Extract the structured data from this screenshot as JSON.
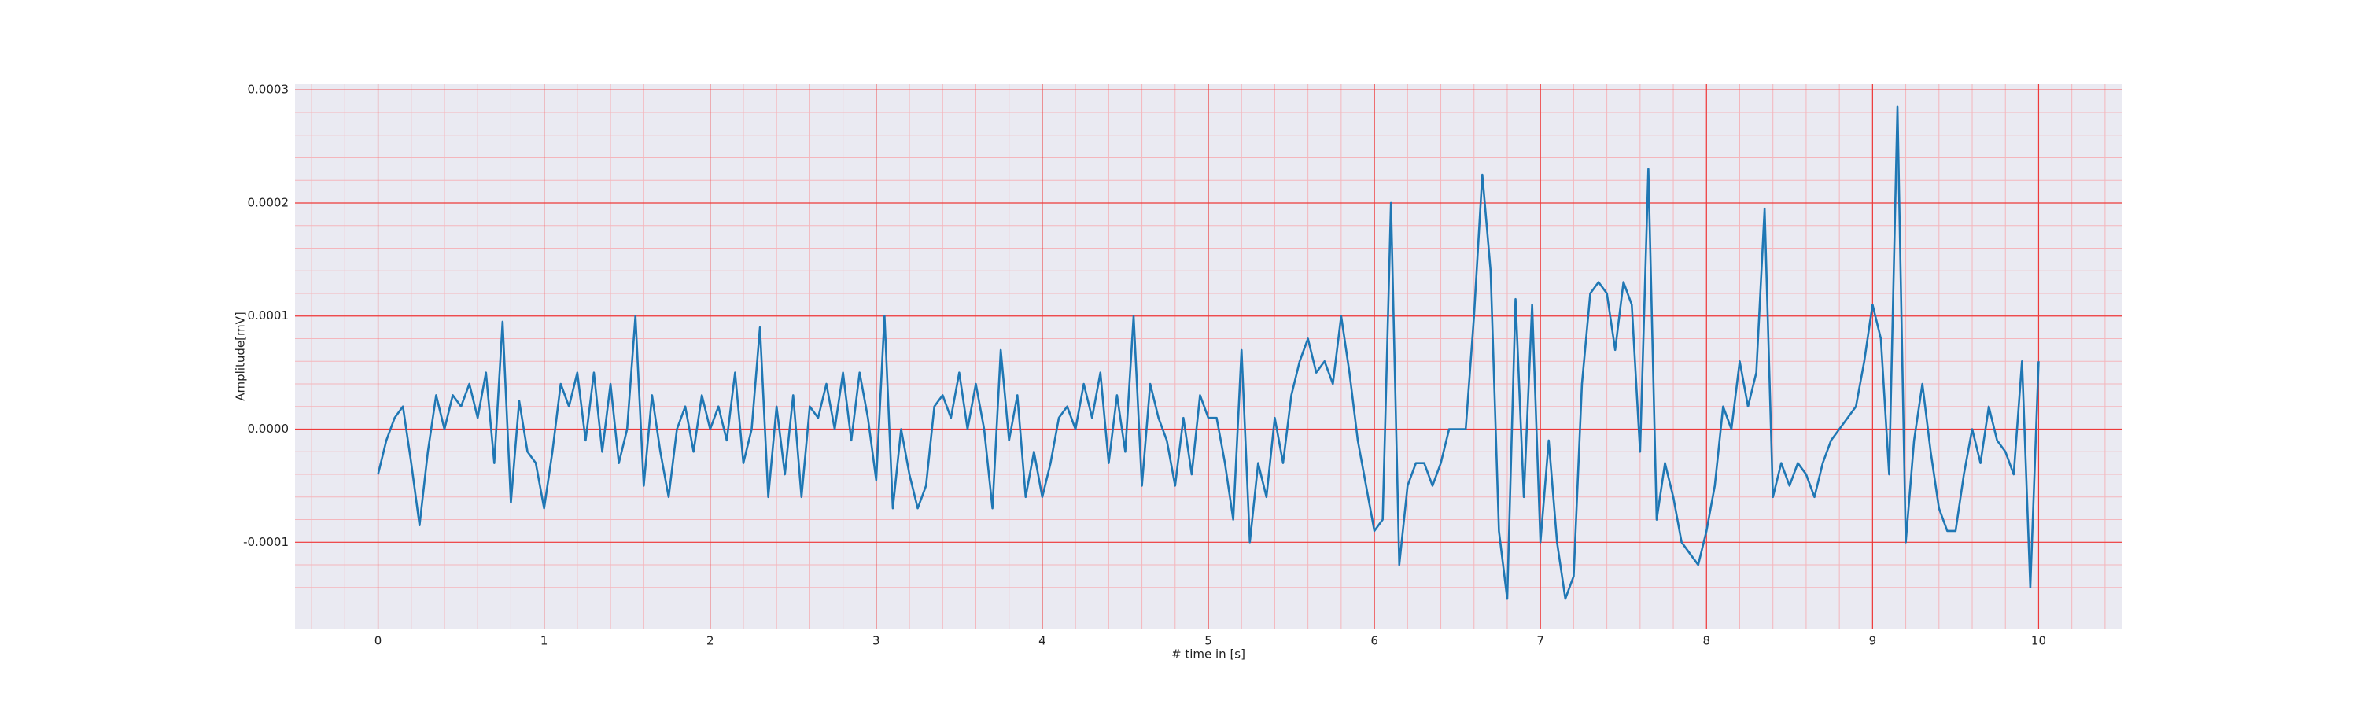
{
  "chart_data": {
    "type": "line",
    "xlabel": "# time in [s]",
    "ylabel": "Amplitude[mV]",
    "x": [
      0,
      0.05,
      0.1,
      0.15,
      0.2,
      0.25,
      0.3,
      0.35,
      0.4,
      0.45,
      0.5,
      0.55,
      0.6,
      0.65,
      0.7,
      0.75,
      0.8,
      0.85,
      0.9,
      0.95,
      1,
      1.05,
      1.1,
      1.15,
      1.2,
      1.25,
      1.3,
      1.35,
      1.4,
      1.45,
      1.5,
      1.55,
      1.6,
      1.65,
      1.7,
      1.75,
      1.8,
      1.85,
      1.9,
      1.95,
      2,
      2.05,
      2.1,
      2.15,
      2.2,
      2.25,
      2.3,
      2.35,
      2.4,
      2.45,
      2.5,
      2.55,
      2.6,
      2.65,
      2.7,
      2.75,
      2.8,
      2.85,
      2.9,
      2.95,
      3,
      3.05,
      3.1,
      3.15,
      3.2,
      3.25,
      3.3,
      3.35,
      3.4,
      3.45,
      3.5,
      3.55,
      3.6,
      3.65,
      3.7,
      3.75,
      3.8,
      3.85,
      3.9,
      3.95,
      4,
      4.05,
      4.1,
      4.15,
      4.2,
      4.25,
      4.3,
      4.35,
      4.4,
      4.45,
      4.5,
      4.55,
      4.6,
      4.65,
      4.7,
      4.75,
      4.8,
      4.85,
      4.9,
      4.95,
      5,
      5.05,
      5.1,
      5.15,
      5.2,
      5.25,
      5.3,
      5.35,
      5.4,
      5.45,
      5.5,
      5.55,
      5.6,
      5.65,
      5.7,
      5.75,
      5.8,
      5.85,
      5.9,
      5.95,
      6,
      6.05,
      6.1,
      6.15,
      6.2,
      6.25,
      6.3,
      6.35,
      6.4,
      6.45,
      6.5,
      6.55,
      6.6,
      6.65,
      6.7,
      6.75,
      6.8,
      6.85,
      6.9,
      6.95,
      7,
      7.05,
      7.1,
      7.15,
      7.2,
      7.25,
      7.3,
      7.35,
      7.4,
      7.45,
      7.5,
      7.55,
      7.6,
      7.65,
      7.7,
      7.75,
      7.8,
      7.85,
      7.9,
      7.95,
      8,
      8.05,
      8.1,
      8.15,
      8.2,
      8.25,
      8.3,
      8.35,
      8.4,
      8.45,
      8.5,
      8.55,
      8.6,
      8.65,
      8.7,
      8.75,
      8.8,
      8.85,
      8.9,
      8.95,
      9,
      9.05,
      9.1,
      9.15,
      9.2,
      9.25,
      9.3,
      9.35,
      9.4,
      9.45,
      9.5,
      9.55,
      9.6,
      9.65,
      9.7,
      9.75,
      9.8,
      9.85,
      9.9,
      9.95,
      10
    ],
    "values": [
      -4e-05,
      -1e-05,
      1e-05,
      2e-05,
      -3e-05,
      -8.5e-05,
      -2e-05,
      3e-05,
      0,
      3e-05,
      2e-05,
      4e-05,
      1e-05,
      5e-05,
      -3e-05,
      9.5e-05,
      -6.5e-05,
      2.5e-05,
      -2e-05,
      -3e-05,
      -7e-05,
      -2e-05,
      4e-05,
      2e-05,
      5e-05,
      -1e-05,
      5e-05,
      -2e-05,
      4e-05,
      -3e-05,
      0,
      0.0001,
      -5e-05,
      3e-05,
      -2e-05,
      -6e-05,
      0,
      2e-05,
      -2e-05,
      3e-05,
      0,
      2e-05,
      -1e-05,
      5e-05,
      -3e-05,
      0,
      9e-05,
      -6e-05,
      2e-05,
      -4e-05,
      3e-05,
      -6e-05,
      2e-05,
      1e-05,
      4e-05,
      0,
      5e-05,
      -1e-05,
      5e-05,
      1e-05,
      -4.5e-05,
      0.0001,
      -7e-05,
      0,
      -4e-05,
      -7e-05,
      -5e-05,
      2e-05,
      3e-05,
      1e-05,
      5e-05,
      0,
      4e-05,
      0,
      -7e-05,
      7e-05,
      -1e-05,
      3e-05,
      -6e-05,
      -2e-05,
      -6e-05,
      -3e-05,
      1e-05,
      2e-05,
      0,
      4e-05,
      1e-05,
      5e-05,
      -3e-05,
      3e-05,
      -2e-05,
      0.0001,
      -5e-05,
      4e-05,
      1e-05,
      -1e-05,
      -5e-05,
      1e-05,
      -4e-05,
      3e-05,
      1e-05,
      1e-05,
      -3e-05,
      -8e-05,
      7e-05,
      -0.0001,
      -3e-05,
      -6e-05,
      1e-05,
      -3e-05,
      3e-05,
      6e-05,
      8e-05,
      5e-05,
      6e-05,
      4e-05,
      0.0001,
      5e-05,
      -1e-05,
      -5e-05,
      -9e-05,
      -8e-05,
      0.0002,
      -0.00012,
      -5e-05,
      -3e-05,
      -3e-05,
      -5e-05,
      -3e-05,
      0,
      0,
      0,
      0.0001,
      0.000225,
      0.00014,
      -9e-05,
      -0.00015,
      0.000115,
      -6e-05,
      0.00011,
      -0.0001,
      -1e-05,
      -0.0001,
      -0.00015,
      -0.00013,
      4e-05,
      0.00012,
      0.00013,
      0.00012,
      7e-05,
      0.00013,
      0.00011,
      -2e-05,
      0.00023,
      -8e-05,
      -3e-05,
      -6e-05,
      -0.0001,
      -0.00011,
      -0.00012,
      -9e-05,
      -5e-05,
      2e-05,
      0,
      6e-05,
      2e-05,
      5e-05,
      0.000195,
      -6e-05,
      -3e-05,
      -5e-05,
      -3e-05,
      -4e-05,
      -6e-05,
      -3e-05,
      -1e-05,
      0,
      1e-05,
      2e-05,
      6e-05,
      0.00011,
      8e-05,
      -4e-05,
      0.000285,
      -0.0001,
      -1e-05,
      4e-05,
      -2e-05,
      -7e-05,
      -9e-05,
      -9e-05,
      -4e-05,
      0,
      -3e-05,
      2e-05,
      -1e-05,
      -2e-05,
      -4e-05,
      6e-05,
      -0.00014,
      6e-05
    ],
    "color": "#1f77b4",
    "xlim": [
      -0.5,
      10.5
    ],
    "ylim": [
      -0.000177,
      0.000305
    ],
    "xticks": [
      0,
      1,
      2,
      3,
      4,
      5,
      6,
      7,
      8,
      9,
      10
    ],
    "yticks": [
      -0.0001,
      {
        "value": 0,
        "label": "0.0000"
      },
      0.0001,
      0.0002,
      0.0003
    ],
    "grid": true,
    "minor_grid": true
  }
}
